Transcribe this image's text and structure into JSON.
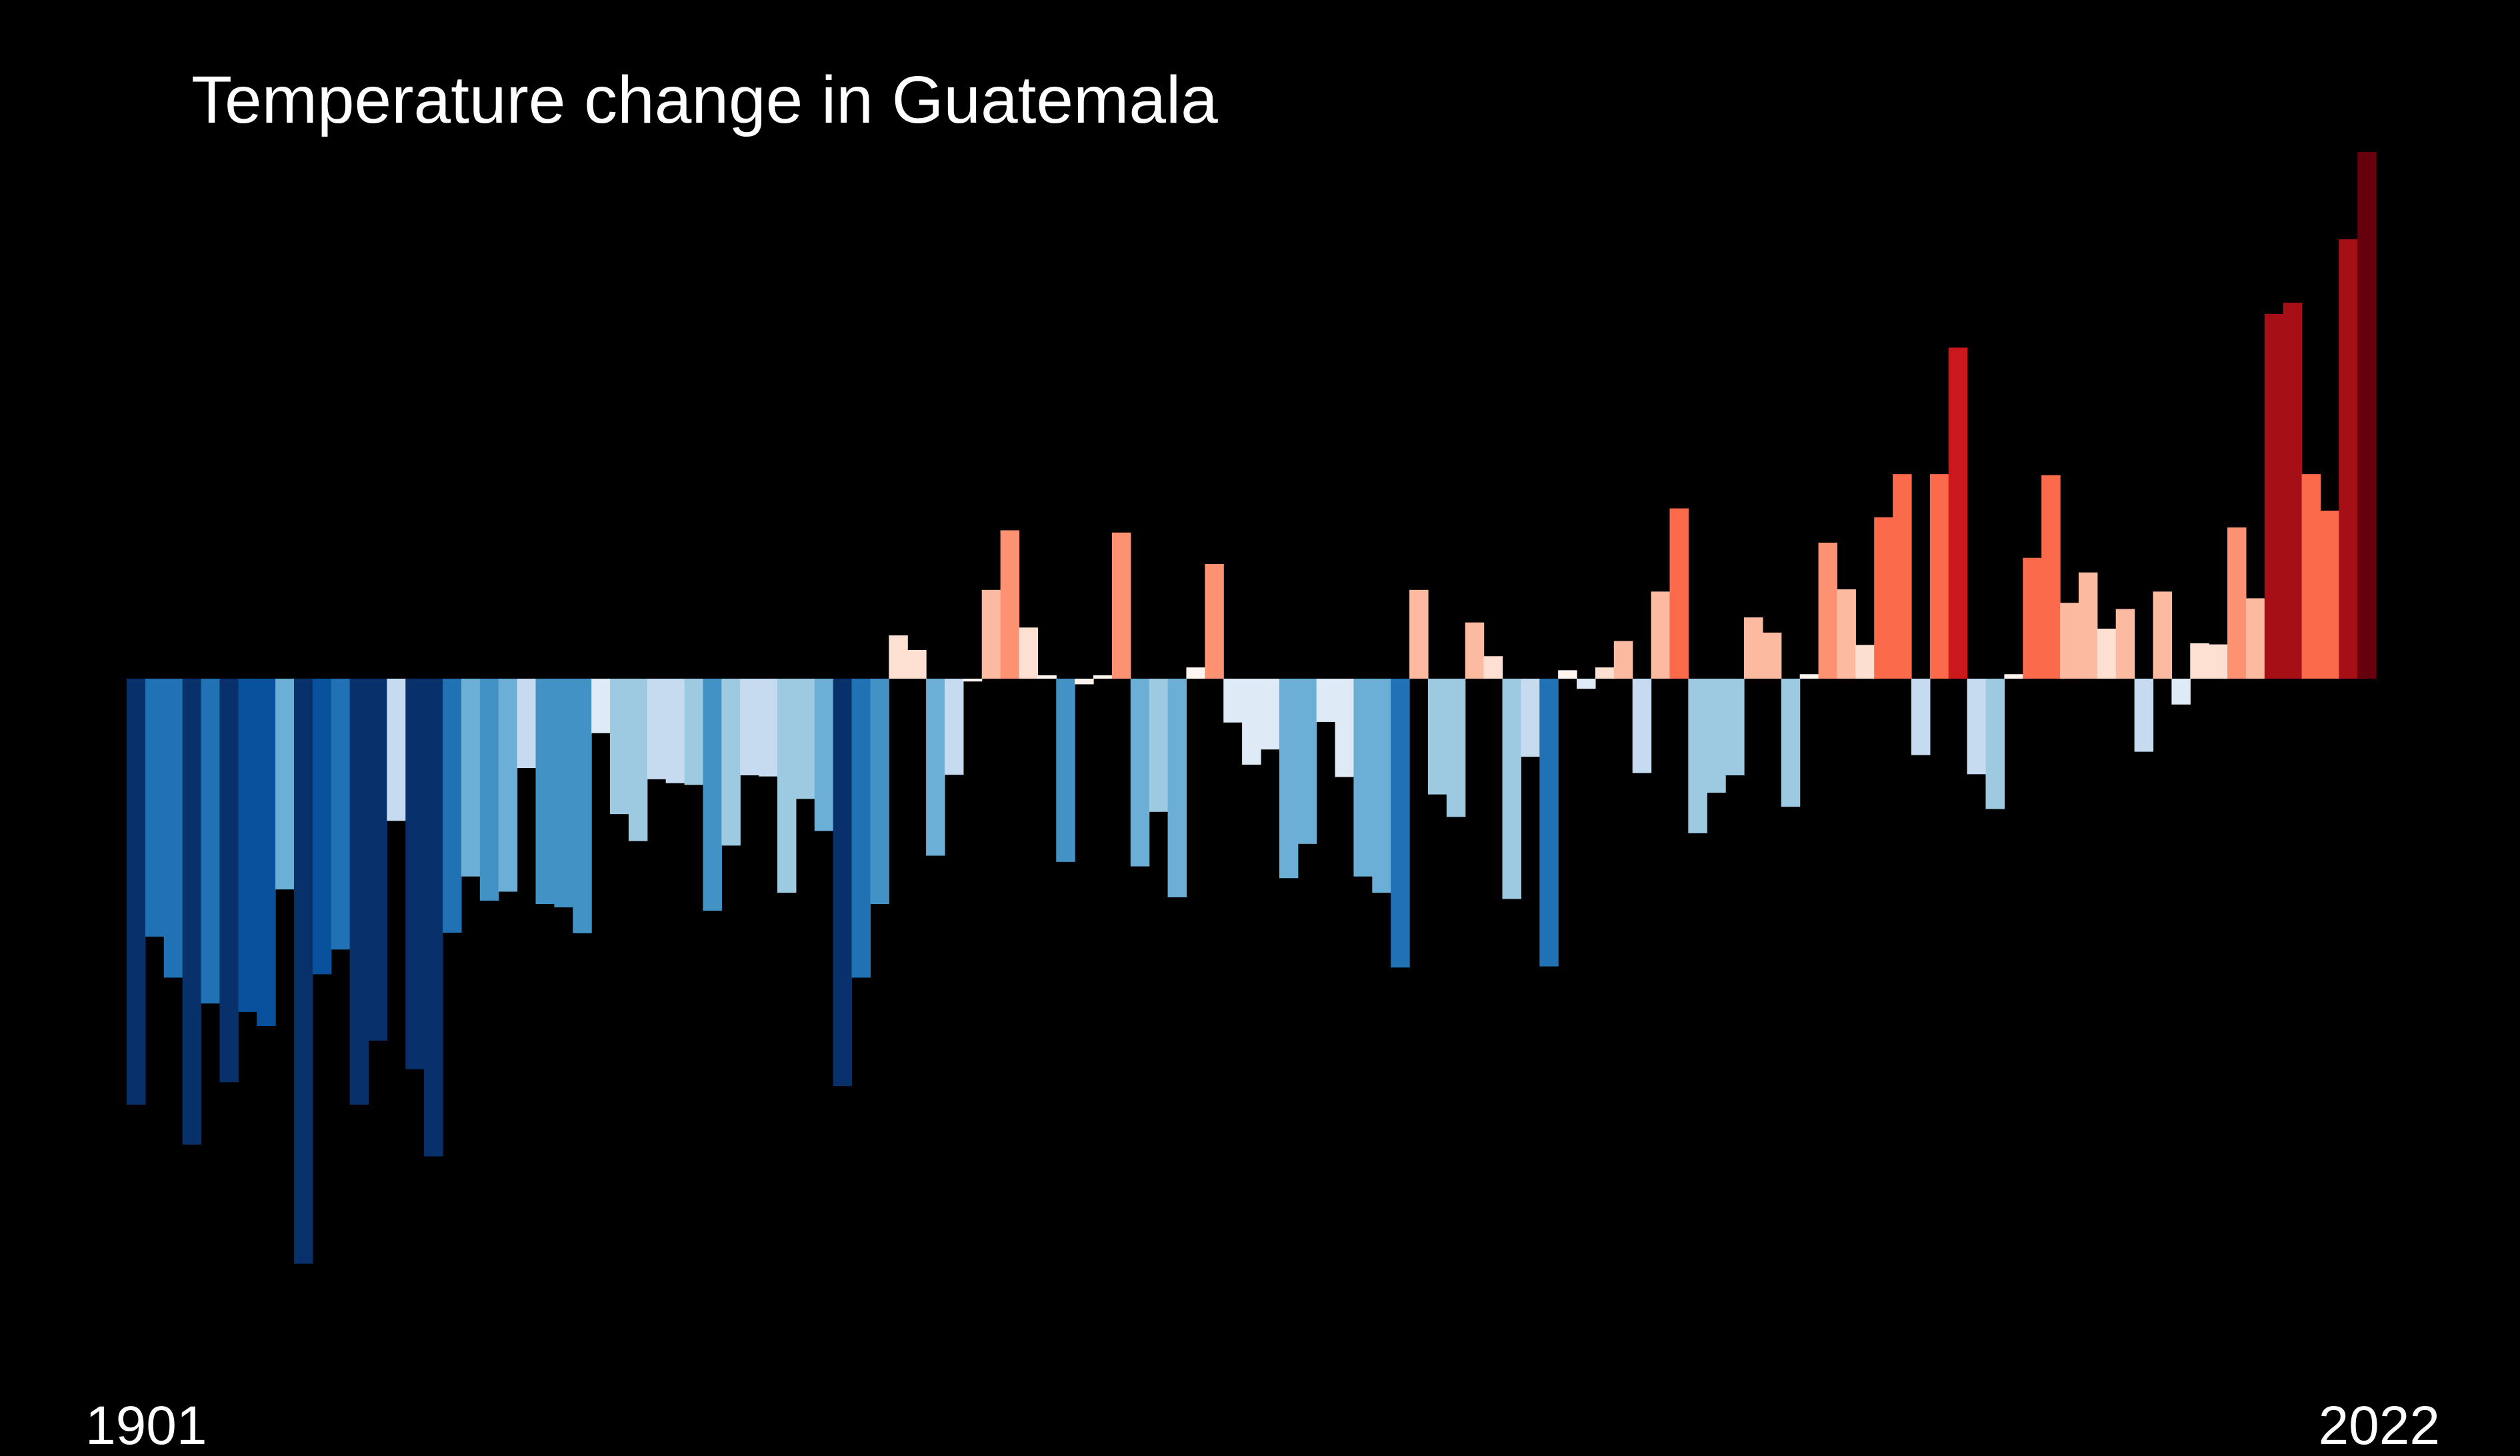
{
  "chart_data": {
    "type": "bar",
    "title": "Temperature change in Guatemala",
    "subtitle": "",
    "xlabel": "",
    "ylabel": "",
    "x_start_label": "1901",
    "x_end_label": "2022",
    "x": [
      1901,
      1902,
      1903,
      1904,
      1905,
      1906,
      1907,
      1908,
      1909,
      1910,
      1911,
      1912,
      1913,
      1914,
      1915,
      1916,
      1917,
      1918,
      1919,
      1920,
      1921,
      1922,
      1923,
      1924,
      1925,
      1926,
      1927,
      1928,
      1929,
      1930,
      1931,
      1932,
      1933,
      1934,
      1935,
      1936,
      1937,
      1938,
      1939,
      1940,
      1941,
      1942,
      1943,
      1944,
      1945,
      1946,
      1947,
      1948,
      1949,
      1950,
      1951,
      1952,
      1953,
      1954,
      1955,
      1956,
      1957,
      1958,
      1959,
      1960,
      1961,
      1962,
      1963,
      1964,
      1965,
      1966,
      1967,
      1968,
      1969,
      1970,
      1971,
      1972,
      1973,
      1974,
      1975,
      1976,
      1977,
      1978,
      1979,
      1980,
      1981,
      1982,
      1983,
      1984,
      1985,
      1986,
      1987,
      1988,
      1989,
      1990,
      1991,
      1992,
      1993,
      1994,
      1995,
      1996,
      1997,
      1998,
      1999,
      2000,
      2001,
      2002,
      2003,
      2004,
      2005,
      2006,
      2007,
      2008,
      2009,
      2010,
      2011,
      2012,
      2013,
      2014,
      2015,
      2016,
      2017,
      2018,
      2019,
      2020,
      2021,
      2022
    ],
    "values": [
      -0.758,
      -0.459,
      -0.532,
      -0.829,
      -0.578,
      -0.718,
      -0.593,
      -0.618,
      -0.375,
      -1.041,
      -0.526,
      -0.482,
      -0.758,
      -0.644,
      -0.253,
      -0.695,
      -0.85,
      -0.452,
      -0.352,
      -0.395,
      -0.379,
      -0.159,
      -0.401,
      -0.407,
      -0.453,
      -0.097,
      -0.241,
      -0.289,
      -0.179,
      -0.186,
      -0.189,
      -0.413,
      -0.297,
      -0.172,
      -0.174,
      -0.381,
      -0.214,
      -0.271,
      -0.725,
      -0.532,
      -0.401,
      0.077,
      0.051,
      -0.315,
      -0.171,
      -0.005,
      0.158,
      0.264,
      0.091,
      0.006,
      -0.326,
      -0.01,
      0.006,
      0.26,
      -0.334,
      -0.237,
      -0.389,
      0.02,
      0.204,
      -0.078,
      -0.153,
      -0.126,
      -0.355,
      -0.294,
      -0.077,
      -0.175,
      -0.352,
      -0.381,
      -0.514,
      0.158,
      -0.206,
      -0.246,
      0.1,
      0.04,
      -0.392,
      -0.139,
      -0.512,
      0.015,
      -0.018,
      0.02,
      0.067,
      -0.168,
      0.155,
      0.303,
      -0.275,
      -0.203,
      -0.172,
      0.109,
      0.082,
      -0.228,
      0.008,
      0.242,
      0.159,
      0.06,
      0.287,
      0.364,
      -0.136,
      0.364,
      0.589,
      -0.17,
      -0.232,
      0.008,
      0.215,
      0.362,
      0.135,
      0.189,
      0.089,
      0.124,
      -0.13,
      0.155,
      -0.046,
      0.063,
      0.061,
      0.269,
      0.143,
      0.649,
      0.669,
      0.364,
      0.299,
      0.782,
      0.937,
      0.0
    ],
    "colors": [
      "#08306b",
      "#2171b5",
      "#2171b5",
      "#08306b",
      "#2171b5",
      "#08306b",
      "#08519c",
      "#08519c",
      "#6baed6",
      "#08306b",
      "#08519c",
      "#2171b5",
      "#08306b",
      "#08306b",
      "#c6dbef",
      "#08306b",
      "#08306b",
      "#2171b5",
      "#6baed6",
      "#4292c6",
      "#6baed6",
      "#c6dbef",
      "#4292c6",
      "#4292c6",
      "#4292c6",
      "#deebf7",
      "#9ecae1",
      "#9ecae1",
      "#c6dbef",
      "#c6dbef",
      "#9ecae1",
      "#4292c6",
      "#9ecae1",
      "#c6dbef",
      "#c6dbef",
      "#9ecae1",
      "#9ecae1",
      "#6baed6",
      "#08306b",
      "#2171b5",
      "#4292c6",
      "#fee0d2",
      "#fee0d2",
      "#6baed6",
      "#c6dbef",
      "#fff5f0",
      "#fcbba1",
      "#fc9272",
      "#fee0d2",
      "#fff5f0",
      "#4292c6",
      "#fff5f0",
      "#fff5f0",
      "#fc9272",
      "#6baed6",
      "#9ecae1",
      "#6baed6",
      "#fff5f0",
      "#fc9272",
      "#deebf7",
      "#deebf7",
      "#deebf7",
      "#6baed6",
      "#6baed6",
      "#deebf7",
      "#deebf7",
      "#6baed6",
      "#6baed6",
      "#2171b5",
      "#fcbba1",
      "#9ecae1",
      "#9ecae1",
      "#fcbba1",
      "#fee0d2",
      "#9ecae1",
      "#c6dbef",
      "#2171b5",
      "#fff5f0",
      "#deebf7",
      "#fee0d2",
      "#fcbba1",
      "#c6dbef",
      "#fcbba1",
      "#fb6a4a",
      "#9ecae1",
      "#9ecae1",
      "#9ecae1",
      "#fcbba1",
      "#fcbba1",
      "#9ecae1",
      "#fff5f0",
      "#fc9272",
      "#fcbba1",
      "#fee0d2",
      "#fb6a4a",
      "#fb6a4a",
      "#c6dbef",
      "#fb6a4a",
      "#cb181d",
      "#c6dbef",
      "#9ecae1",
      "#fff5f0",
      "#fb6a4a",
      "#fb6a4a",
      "#fcbba1",
      "#fcbba1",
      "#fee0d2",
      "#fcbba1",
      "#c6dbef",
      "#fcbba1",
      "#deebf7",
      "#fee0d2",
      "#fee0d2",
      "#fc9272",
      "#fcbba1",
      "#a50f15",
      "#a50f15",
      "#fb6a4a",
      "#fb6a4a",
      "#a50f15",
      "#67000d",
      "#fff5f0"
    ],
    "ylim": [
      -1.2,
      1.2
    ],
    "grid": false,
    "legend": "none",
    "background": "#000000",
    "text_color": "#ffffff"
  }
}
